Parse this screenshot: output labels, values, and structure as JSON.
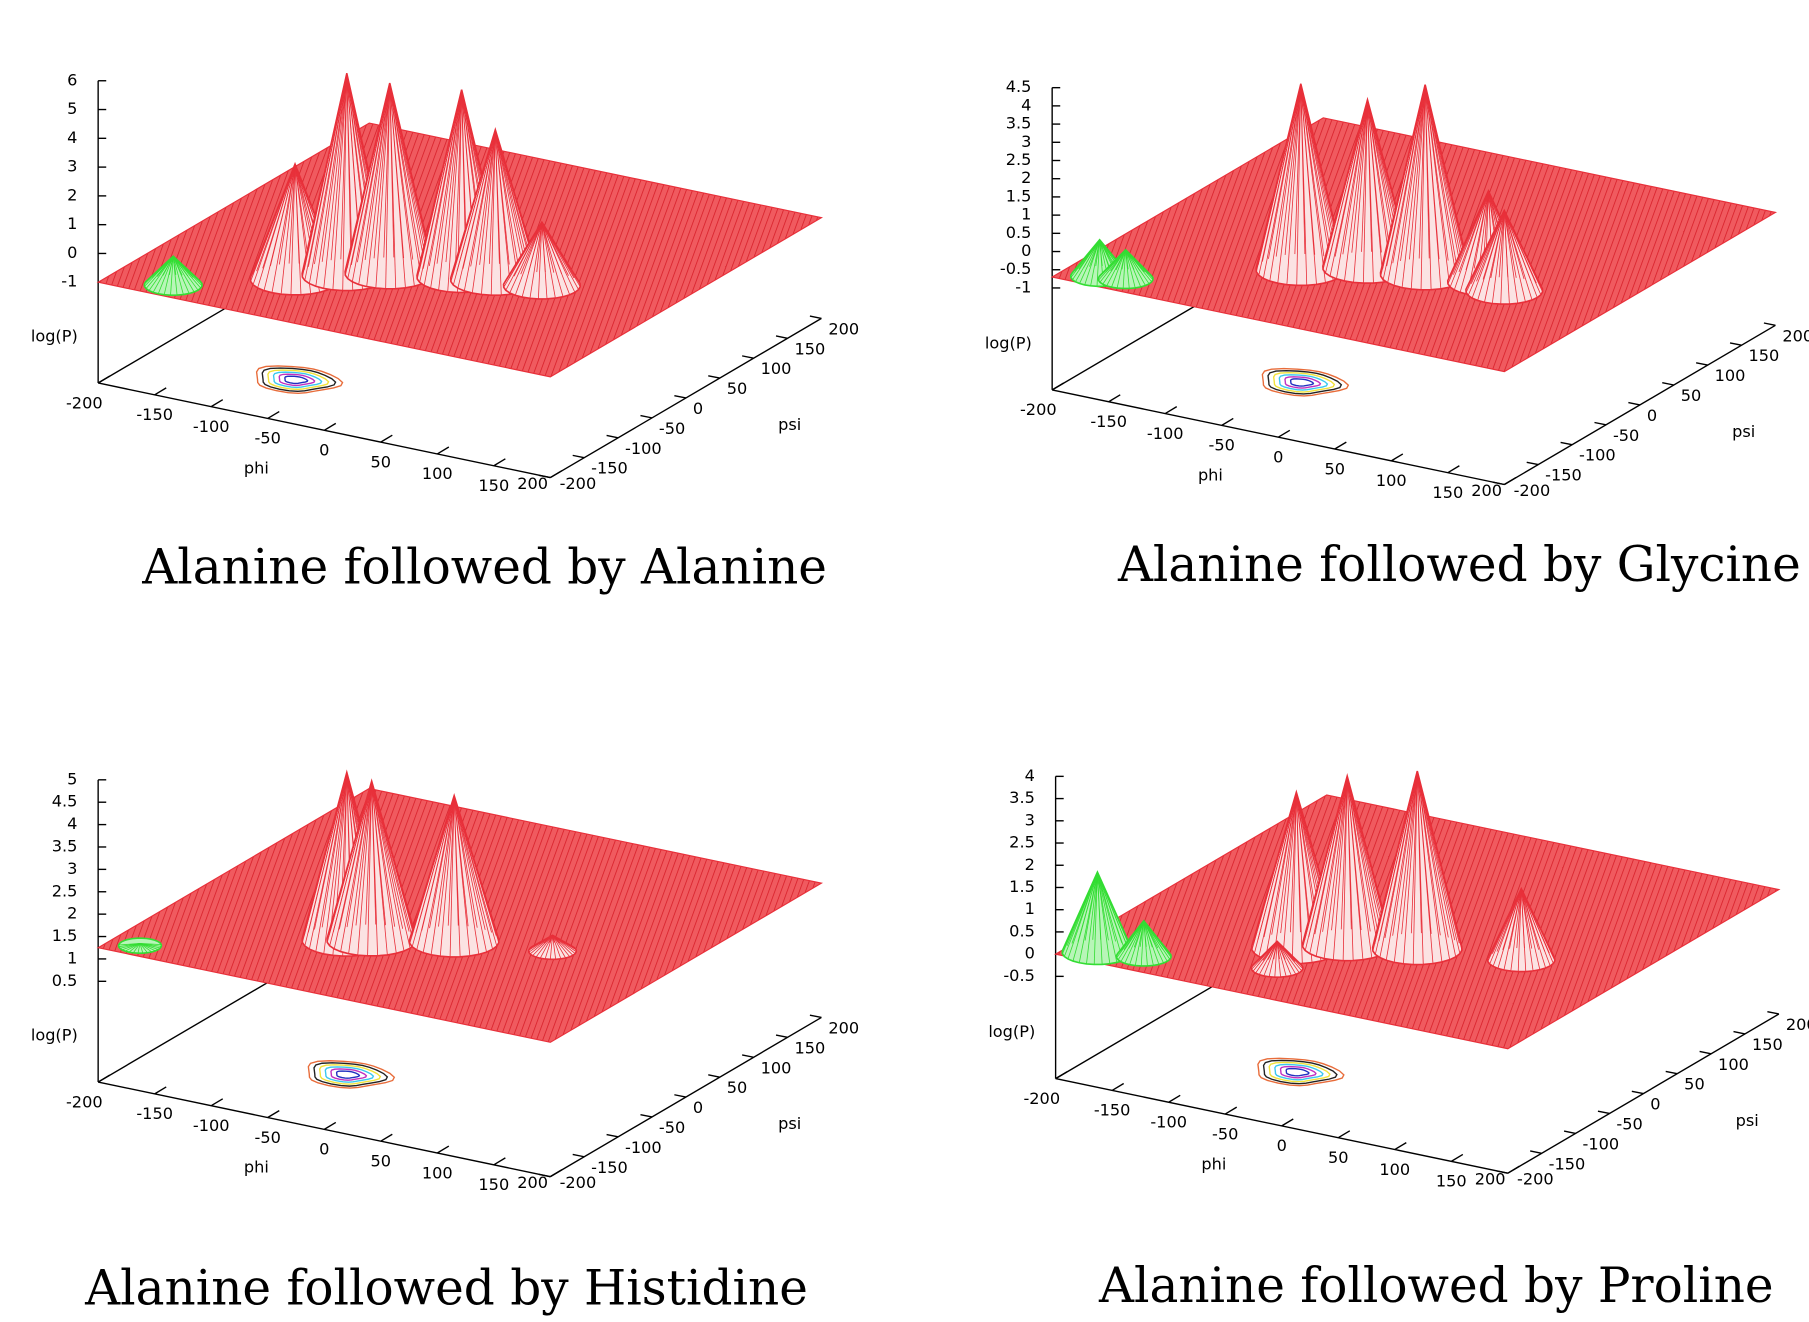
{
  "chart_data": [
    {
      "type": "surface",
      "title": "Alanine followed by Alanine",
      "xlabel": "phi",
      "ylabel": "psi",
      "zlabel": "log(P)",
      "color": "#e8303a",
      "xlim": [
        -200,
        200
      ],
      "ylim": [
        -200,
        200
      ],
      "zlim": [
        -4.5,
        6
      ],
      "xticks": [
        -200,
        -150,
        -100,
        -50,
        0,
        50,
        100,
        150,
        200
      ],
      "yticks": [
        -200,
        -150,
        -100,
        -50,
        0,
        50,
        100,
        150,
        200
      ],
      "zticks": [
        6,
        5,
        4,
        3,
        2,
        1,
        0,
        -1
      ],
      "baseline": -1,
      "peaks": [
        {
          "x": -75,
          "y": -118,
          "z": 3
        },
        {
          "x": -46,
          "y": -90,
          "z": 6
        },
        {
          "x": -20,
          "y": -70,
          "z": 5.6
        },
        {
          "x": 31,
          "y": -49,
          "z": 5.5
        },
        {
          "x": 56,
          "y": -41,
          "z": 4.2
        },
        {
          "x": 93,
          "y": -34,
          "z": 1.2
        },
        {
          "x": -148,
          "y": -176,
          "z": 0,
          "color": "#33dd33"
        }
      ]
    },
    {
      "type": "surface",
      "title": "Alanine followed by Glycine",
      "xlabel": "phi",
      "ylabel": "psi",
      "zlabel": "log(P)",
      "color": "#e8303a",
      "xlim": [
        -200,
        200
      ],
      "ylim": [
        -200,
        200
      ],
      "zlim": [
        -3.8,
        4.5
      ],
      "xticks": [
        -200,
        -150,
        -100,
        -50,
        0,
        50,
        100,
        150,
        200
      ],
      "yticks": [
        -200,
        -150,
        -100,
        -50,
        0,
        50,
        100,
        150,
        200
      ],
      "zticks": [
        4.5,
        4,
        3.5,
        3,
        2.5,
        2,
        1.5,
        1,
        0.5,
        0,
        -0.5,
        -1
      ],
      "baseline": -0.7,
      "peaks": [
        {
          "x": -46,
          "y": -90,
          "z": 4.4
        },
        {
          "x": -5,
          "y": -60,
          "z": 3.9
        },
        {
          "x": 40,
          "y": -50,
          "z": 4.5
        },
        {
          "x": 90,
          "y": -40,
          "z": 1.8
        },
        {
          "x": 110,
          "y": -50,
          "z": 1.5
        },
        {
          "x": -170,
          "y": -180,
          "z": 0.3,
          "color": "#33dd33"
        },
        {
          "x": -150,
          "y": -175,
          "z": 0.1,
          "color": "#33dd33"
        }
      ]
    },
    {
      "type": "surface",
      "title": "Alanine followed by Histidine",
      "xlabel": "phi",
      "ylabel": "psi",
      "zlabel": "log(P)",
      "color": "#e8303a",
      "xlim": [
        -200,
        200
      ],
      "ylim": [
        -200,
        200
      ],
      "zlim": [
        -1.75,
        5
      ],
      "xticks": [
        -200,
        -150,
        -100,
        -50,
        0,
        50,
        100,
        150,
        200
      ],
      "yticks": [
        -200,
        -150,
        -100,
        -50,
        0,
        50,
        100,
        150,
        200
      ],
      "zticks": [
        5,
        4.5,
        4,
        3.5,
        3,
        2.5,
        2,
        1.5,
        1,
        0.5
      ],
      "baseline": 1.25,
      "peaks": [
        {
          "x": -46,
          "y": -90,
          "z": 5
        },
        {
          "x": -30,
          "y": -80,
          "z": 4.8
        },
        {
          "x": 25,
          "y": -50,
          "z": 4.5
        },
        {
          "x": 100,
          "y": -30,
          "z": 1.6
        },
        {
          "x": -175,
          "y": -180,
          "z": 1.3,
          "color": "#33dd33"
        }
      ]
    },
    {
      "type": "surface",
      "title": "Alanine followed by Proline",
      "xlabel": "phi",
      "ylabel": "psi",
      "zlabel": "log(P)",
      "color": "#e8303a",
      "xlim": [
        -200,
        200
      ],
      "ylim": [
        -200,
        200
      ],
      "zlim": [
        -2.8,
        4
      ],
      "xticks": [
        -200,
        -150,
        -100,
        -50,
        0,
        50,
        100,
        150,
        200
      ],
      "yticks": [
        -200,
        -150,
        -100,
        -50,
        0,
        50,
        100,
        150,
        200
      ],
      "zticks": [
        4,
        3.5,
        3,
        2.5,
        2,
        1.5,
        1,
        0.5,
        0,
        -0.5
      ],
      "baseline": 0,
      "peaks": [
        {
          "x": -50,
          "y": -95,
          "z": 3.5
        },
        {
          "x": -20,
          "y": -70,
          "z": 3.8
        },
        {
          "x": 30,
          "y": -50,
          "z": 4
        },
        {
          "x": 110,
          "y": -30,
          "z": 1.6
        },
        {
          "x": -40,
          "y": -140,
          "z": 0.6
        },
        {
          "x": -175,
          "y": -180,
          "z": 1.8,
          "color": "#33dd33"
        },
        {
          "x": -140,
          "y": -170,
          "z": 0.8,
          "color": "#33dd33"
        }
      ]
    }
  ]
}
